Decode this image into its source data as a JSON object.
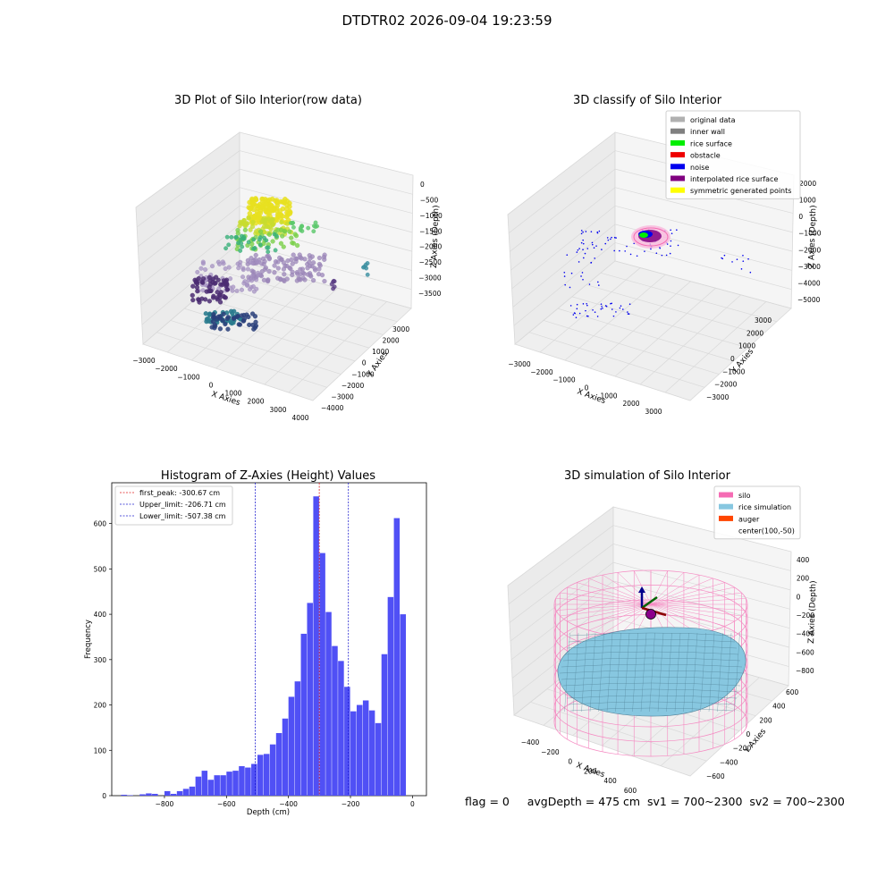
{
  "figure": {
    "suptitle": "DTDTR02 2026-09-04 19:23:59",
    "footer": "flag = 0     avgDepth = 475 cm  sv1 = 700~2300  sv2 = 700~2300"
  },
  "colors": {
    "histogram_bar": "#5050f5",
    "first_peak": "#e02020",
    "limit_lines": "#2020d0",
    "silo_mesh": "#f58ac2",
    "rice_surface": "#87c7e0",
    "auger": "#ff4500"
  },
  "panels": {
    "raw": {
      "title": "3D Plot of Silo Interior(row data)",
      "xlabel": "X Axies",
      "ylabel": "Y Axies",
      "zlabel": "Z Axies (Depth)",
      "xticks": [
        "−3000",
        "−2000",
        "−1000",
        "0",
        "1000",
        "2000",
        "3000",
        "4000"
      ],
      "yticks": [
        "3000",
        "2000",
        "1000",
        "0",
        "−1000",
        "−2000",
        "−3000",
        "−4000"
      ],
      "zticks": [
        "0",
        "−500",
        "−1000",
        "−1500",
        "−2000",
        "−2500",
        "−3000",
        "−3500"
      ]
    },
    "classify": {
      "title": "3D classify of Silo Interior",
      "xlabel": "X Axies",
      "ylabel": "Y Axies",
      "zlabel": "Z Axies (Depth)",
      "xticks": [
        "−3000",
        "−2000",
        "−1000",
        "0",
        "1000",
        "2000",
        "3000"
      ],
      "yticks": [
        "3000",
        "2000",
        "1000",
        "0",
        "−1000",
        "−2000",
        "−3000"
      ],
      "zticks": [
        "2000",
        "1000",
        "0",
        "−1000",
        "−2000",
        "−3000",
        "−4000",
        "−5000"
      ],
      "legend": [
        {
          "label": "original data",
          "color": "#b0b0b0"
        },
        {
          "label": "inner wall",
          "color": "#808080"
        },
        {
          "label": "rice surface",
          "color": "#00ee00"
        },
        {
          "label": "obstacle",
          "color": "#ee0000"
        },
        {
          "label": "noise",
          "color": "#0000ee"
        },
        {
          "label": "interpolated rice surface",
          "color": "#800080"
        },
        {
          "label": "symmetric generated points",
          "color": "#ffff00"
        }
      ]
    },
    "sim": {
      "title": "3D simulation of Silo Interior",
      "xlabel": "X Axies",
      "ylabel": "Y Axies",
      "zlabel": "Z Axies (Depth)",
      "xticks": [
        "−400",
        "−200",
        "0",
        "200",
        "400",
        "600"
      ],
      "yticks": [
        "600",
        "400",
        "200",
        "0",
        "−200",
        "−400",
        "−600"
      ],
      "zticks": [
        "400",
        "200",
        "0",
        "−200",
        "−400",
        "−600",
        "−800"
      ],
      "legend": [
        {
          "label": "silo",
          "color": "#f56cb4"
        },
        {
          "label": "rice simulation",
          "color": "#87c7e0"
        },
        {
          "label": "auger",
          "color": "#ff4500"
        },
        {
          "label": "center(100,-50)",
          "color": ""
        }
      ]
    }
  },
  "chart_data": {
    "type": "bar",
    "title": "Histogram of Z-Axies (Height) Values",
    "xlabel": "Depth (cm)",
    "ylabel": "Frequency",
    "xlim": [
      -970,
      45
    ],
    "ylim": [
      0,
      690
    ],
    "bin_width": 18.75,
    "bins": [
      {
        "x0": -940,
        "v": 2
      },
      {
        "x0": -920,
        "v": 1
      },
      {
        "x0": -880,
        "v": 3
      },
      {
        "x0": -860,
        "v": 5
      },
      {
        "x0": -840,
        "v": 4
      },
      {
        "x0": -800,
        "v": 10
      },
      {
        "x0": -780,
        "v": 4
      },
      {
        "x0": -760,
        "v": 10
      },
      {
        "x0": -740,
        "v": 15
      },
      {
        "x0": -720,
        "v": 20
      },
      {
        "x0": -700,
        "v": 42
      },
      {
        "x0": -680,
        "v": 55
      },
      {
        "x0": -660,
        "v": 35
      },
      {
        "x0": -640,
        "v": 45
      },
      {
        "x0": -620,
        "v": 45
      },
      {
        "x0": -600,
        "v": 53
      },
      {
        "x0": -580,
        "v": 55
      },
      {
        "x0": -560,
        "v": 65
      },
      {
        "x0": -540,
        "v": 62
      },
      {
        "x0": -520,
        "v": 70
      },
      {
        "x0": -500,
        "v": 90
      },
      {
        "x0": -480,
        "v": 92
      },
      {
        "x0": -460,
        "v": 113
      },
      {
        "x0": -440,
        "v": 138
      },
      {
        "x0": -420,
        "v": 170
      },
      {
        "x0": -400,
        "v": 218
      },
      {
        "x0": -380,
        "v": 252
      },
      {
        "x0": -360,
        "v": 357
      },
      {
        "x0": -340,
        "v": 425
      },
      {
        "x0": -320,
        "v": 660
      },
      {
        "x0": -300,
        "v": 535
      },
      {
        "x0": -280,
        "v": 405
      },
      {
        "x0": -260,
        "v": 330
      },
      {
        "x0": -240,
        "v": 297
      },
      {
        "x0": -220,
        "v": 240
      },
      {
        "x0": -200,
        "v": 186
      },
      {
        "x0": -180,
        "v": 200
      },
      {
        "x0": -160,
        "v": 210
      },
      {
        "x0": -140,
        "v": 188
      },
      {
        "x0": -120,
        "v": 160
      },
      {
        "x0": -100,
        "v": 312
      },
      {
        "x0": -80,
        "v": 438
      },
      {
        "x0": -60,
        "v": 612
      },
      {
        "x0": -40,
        "v": 400
      }
    ],
    "xticks": [
      -800,
      -600,
      -400,
      -200,
      0
    ],
    "yticks": [
      0,
      100,
      200,
      300,
      400,
      500,
      600
    ],
    "lines": [
      {
        "label": "first_peak: -300.67 cm",
        "x": -300.67,
        "color": "#e02020"
      },
      {
        "label": "Upper_limit: -206.71 cm",
        "x": -206.71,
        "color": "#2020d0"
      },
      {
        "label": "Lower_limit: -507.38 cm",
        "x": -507.38,
        "color": "#2020d0"
      }
    ],
    "legend_position": "upper left"
  }
}
